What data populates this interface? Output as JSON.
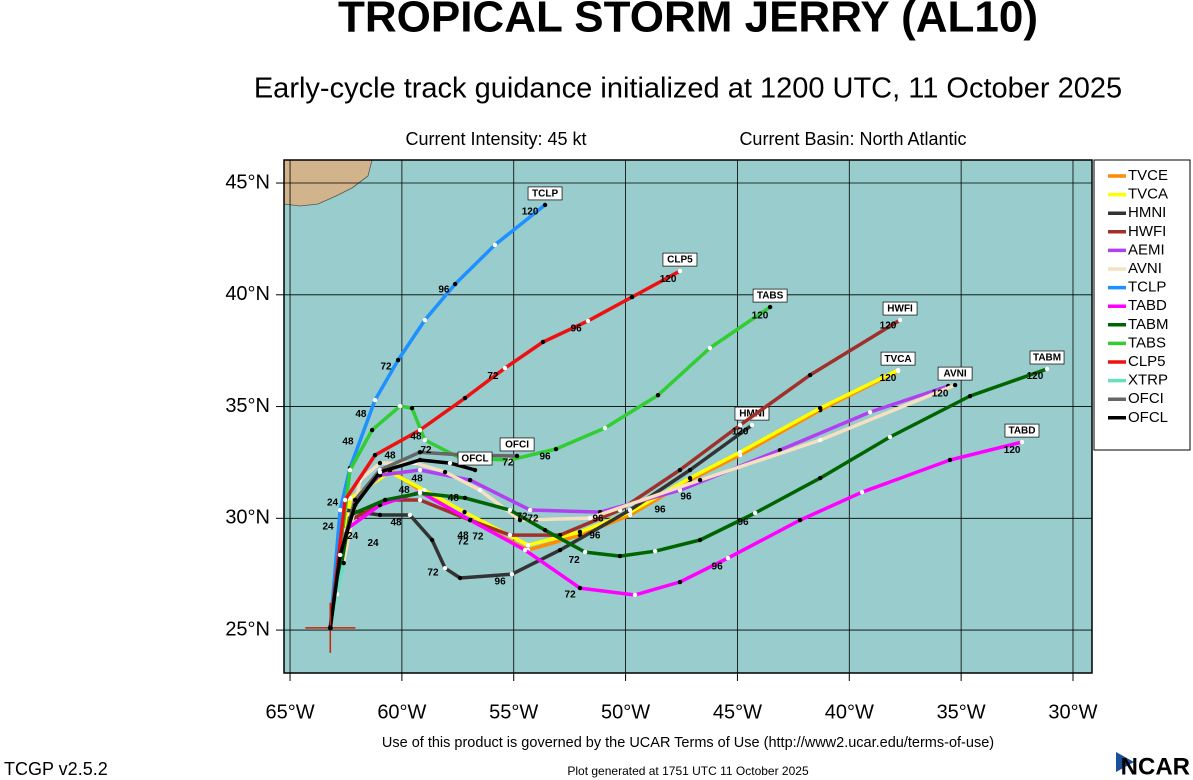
{
  "chart_data": {
    "type": "track",
    "title": "TROPICAL STORM JERRY (AL10)",
    "subtitle": "Early-cycle track guidance initialized at 1200 UTC, 11 October 2025",
    "intensity": "Current Intensity: 45 kt",
    "basin": "Current Basin: North Atlantic",
    "footer": "Use of this product is governed by the UCAR Terms of Use (http://www2.ucar.edu/terms-of-use)",
    "version": "TCGP v2.5.2",
    "generated": "Plot generated at 1751 UTC   11 October 2025",
    "logo": "NCAR",
    "xlim": [
      -65.27,
      -29.15
    ],
    "ylim": [
      23.08,
      46.03
    ],
    "xticks": [
      {
        "value": -65,
        "label": "65°W"
      },
      {
        "value": -60,
        "label": "60°W"
      },
      {
        "value": -55,
        "label": "55°W"
      },
      {
        "value": -50,
        "label": "50°W"
      },
      {
        "value": -45,
        "label": "45°W"
      },
      {
        "value": -40,
        "label": "40°W"
      },
      {
        "value": -35,
        "label": "35°W"
      },
      {
        "value": -30,
        "label": "30°W"
      }
    ],
    "yticks": [
      {
        "value": 25,
        "label": "25°N"
      },
      {
        "value": 30,
        "label": "30°N"
      },
      {
        "value": 35,
        "label": "35°N"
      },
      {
        "value": 40,
        "label": "40°N"
      },
      {
        "value": 45,
        "label": "45°N"
      }
    ],
    "grid": true,
    "legend": "right",
    "current_position": {
      "x": -63.2,
      "y": 25.1
    },
    "series": [
      {
        "name": "TVCE",
        "color": "#ff8c00",
        "labeled": false,
        "x": [
          -63.2,
          -62.32,
          -60.53,
          -59.19,
          -57.4,
          -54.36,
          -52.04,
          -49.8,
          -47.12,
          -44.88,
          -41.3,
          -37.82
        ],
        "y": [
          25.1,
          30.82,
          32.16,
          31.26,
          30.15,
          28.58,
          29.25,
          30.15,
          31.71,
          32.83,
          34.84,
          36.59
        ]
      },
      {
        "name": "TVCA",
        "color": "#ffff00",
        "labeled": true,
        "x": [
          -63.2,
          -62.3,
          -60.53,
          -59.0,
          -57.2,
          -54.36,
          -52.04,
          -49.8,
          -47.12,
          -44.88,
          -41.3,
          -37.82
        ],
        "y": [
          25.1,
          30.9,
          32.07,
          31.26,
          30.28,
          28.8,
          29.39,
          30.28,
          31.8,
          32.96,
          34.93,
          36.63
        ]
      },
      {
        "name": "HMNI",
        "color": "#333333",
        "labeled": true,
        "x": [
          -63.2,
          -62.54,
          -60.98,
          -59.64,
          -58.65,
          -58.07,
          -57.4,
          -55.08,
          -52.93,
          -49.8,
          -47.12,
          -44.35
        ],
        "y": [
          25.1,
          30.37,
          30.15,
          30.15,
          29.03,
          27.77,
          27.33,
          27.5,
          28.58,
          30.37,
          32.16,
          34.17
        ]
      },
      {
        "name": "HWFI",
        "color": "#a0302a",
        "labeled": true,
        "x": [
          -63.2,
          -62.32,
          -60.53,
          -59.19,
          -56.95,
          -55.17,
          -52.93,
          -50.25,
          -47.57,
          -44.88,
          -41.75,
          -37.73
        ],
        "y": [
          25.1,
          29.92,
          30.82,
          30.82,
          29.92,
          29.25,
          29.25,
          30.37,
          32.16,
          34.17,
          36.41,
          38.87
        ]
      },
      {
        "name": "AEMI",
        "color": "#b040f0",
        "labeled": false,
        "x": [
          -63.2,
          -62.09,
          -60.98,
          -59.19,
          -56.95,
          -54.27,
          -51.14,
          -47.57,
          -43.1,
          -39.07,
          -35.58
        ],
        "y": [
          25.1,
          30.82,
          31.93,
          32.16,
          31.71,
          30.37,
          30.28,
          31.26,
          33.05,
          34.75,
          35.92
        ]
      },
      {
        "name": "AVNI",
        "color": "#f5e0c0",
        "labeled": true,
        "x": [
          -63.2,
          -61.87,
          -60.98,
          -59.41,
          -58.07,
          -56.51,
          -54.72,
          -51.59,
          -46.67,
          -41.3,
          -35.27
        ],
        "y": [
          25.1,
          31.71,
          32.47,
          32.47,
          32.07,
          31.26,
          29.92,
          30.01,
          31.71,
          33.5,
          35.96
        ]
      },
      {
        "name": "TCLP",
        "color": "#1e90ff",
        "labeled": true,
        "x": [
          -63.2,
          -62.76,
          -62.32,
          -61.2,
          -60.17,
          -58.97,
          -57.62,
          -55.84,
          -53.6
        ],
        "y": [
          25.1,
          30.37,
          32.25,
          35.29,
          37.08,
          38.87,
          40.48,
          42.23,
          44.02
        ]
      },
      {
        "name": "TABD",
        "color": "#ff00ff",
        "labeled": true,
        "x": [
          -63.2,
          -62.54,
          -60.98,
          -59.19,
          -56.95,
          -54.49,
          -52.04,
          -49.58,
          -47.57,
          -45.42,
          -42.2,
          -39.43,
          -35.5,
          -32.28
        ],
        "y": [
          25.1,
          29.47,
          30.59,
          31.18,
          29.92,
          28.58,
          26.88,
          26.57,
          27.15,
          28.22,
          29.92,
          31.17,
          32.61,
          33.41
        ]
      },
      {
        "name": "TABM",
        "color": "#006400",
        "labeled": true,
        "x": [
          -63.2,
          -62.32,
          -60.75,
          -59.19,
          -57.18,
          -55.17,
          -53.6,
          -51.81,
          -50.25,
          -48.68,
          -46.67,
          -44.21,
          -41.3,
          -38.18,
          -34.6,
          -31.16
        ],
        "y": [
          25.1,
          30.15,
          30.82,
          31.13,
          30.91,
          30.37,
          29.47,
          28.49,
          28.31,
          28.53,
          29.03,
          30.24,
          31.8,
          33.64,
          35.47,
          36.68
        ]
      },
      {
        "name": "TABS",
        "color": "#32cd32",
        "labeled": true,
        "x": [
          -63.2,
          -62.32,
          -61.33,
          -60.08,
          -59.55,
          -58.97,
          -57.4,
          -55.17,
          -53.11,
          -50.92,
          -48.55,
          -46.23,
          -43.54
        ],
        "y": [
          25.1,
          32.16,
          33.95,
          35.02,
          34.93,
          33.5,
          32.7,
          32.61,
          33.1,
          34.04,
          35.51,
          37.62,
          39.45
        ]
      },
      {
        "name": "CLP5",
        "color": "#ee1111",
        "labeled": true,
        "x": [
          -63.2,
          -62.54,
          -61.2,
          -59.19,
          -57.18,
          -55.39,
          -53.69,
          -51.68,
          -49.71,
          -47.57
        ],
        "y": [
          25.1,
          30.82,
          32.83,
          33.95,
          35.38,
          36.72,
          37.89,
          38.83,
          39.9,
          41.06
        ]
      },
      {
        "name": "XTRP",
        "color": "#66e0c0",
        "labeled": false,
        "x": [
          -63.2,
          -62.9,
          -62.6
        ],
        "y": [
          25.1,
          26.6,
          28.0
        ]
      },
      {
        "name": "OFCI",
        "color": "#666666",
        "labeled": true,
        "x": [
          -63.2,
          -62.76,
          -62.09,
          -60.98,
          -59.19,
          -57.18,
          -54.85
        ],
        "y": [
          25.1,
          28.36,
          30.82,
          32.16,
          32.96,
          32.83,
          32.79
        ]
      },
      {
        "name": "OFCL",
        "color": "#000000",
        "labeled": true,
        "x": [
          -63.2,
          -62.76,
          -62.09,
          -60.98,
          -59.19,
          -57.85,
          -56.73
        ],
        "y": [
          25.1,
          28.36,
          30.59,
          32.07,
          32.61,
          32.47,
          32.16
        ]
      }
    ],
    "annotations": [
      {
        "text": "120",
        "x": -54.27,
        "y": 43.7
      },
      {
        "text": "96",
        "x": -58.12,
        "y": 40.21
      },
      {
        "text": "72",
        "x": -60.71,
        "y": 36.77
      },
      {
        "text": "48",
        "x": -62.41,
        "y": 33.41
      },
      {
        "text": "120",
        "x": -48.1,
        "y": 40.7
      },
      {
        "text": "96",
        "x": -52.21,
        "y": 38.47
      },
      {
        "text": "72",
        "x": -55.93,
        "y": 36.36
      },
      {
        "text": "48",
        "x": -60.53,
        "y": 32.79
      },
      {
        "text": "120",
        "x": -43.99,
        "y": 39.05
      },
      {
        "text": "96",
        "x": -53.6,
        "y": 32.74
      },
      {
        "text": "48",
        "x": -61.83,
        "y": 34.66
      },
      {
        "text": "120",
        "x": -38.27,
        "y": 38.6
      },
      {
        "text": "120",
        "x": -44.88,
        "y": 33.86
      },
      {
        "text": "120",
        "x": -38.27,
        "y": 36.27
      },
      {
        "text": "120",
        "x": -35.94,
        "y": 35.56
      },
      {
        "text": "120",
        "x": -31.7,
        "y": 36.36
      },
      {
        "text": "120",
        "x": -32.72,
        "y": 33.05
      },
      {
        "text": "72",
        "x": -55.26,
        "y": 32.47
      },
      {
        "text": "96",
        "x": -45.91,
        "y": 27.82
      },
      {
        "text": "72",
        "x": -52.48,
        "y": 26.57
      },
      {
        "text": "72",
        "x": -58.61,
        "y": 27.55
      },
      {
        "text": "96",
        "x": -55.61,
        "y": 27.15
      },
      {
        "text": "96",
        "x": -44.75,
        "y": 29.83
      },
      {
        "text": "72",
        "x": -52.3,
        "y": 28.13
      },
      {
        "text": "96",
        "x": -51.37,
        "y": 29.21
      },
      {
        "text": "96",
        "x": -48.46,
        "y": 30.37
      },
      {
        "text": "96",
        "x": -47.3,
        "y": 30.95
      },
      {
        "text": "96",
        "x": -51.23,
        "y": 29.97
      },
      {
        "text": "72",
        "x": -57.27,
        "y": 28.94
      },
      {
        "text": "72",
        "x": -56.6,
        "y": 29.16
      },
      {
        "text": "72",
        "x": -54.63,
        "y": 30.06
      },
      {
        "text": "72",
        "x": -54.14,
        "y": 29.97
      },
      {
        "text": "48",
        "x": -57.27,
        "y": 29.21
      },
      {
        "text": "48",
        "x": -57.7,
        "y": 30.9
      },
      {
        "text": "48",
        "x": -59.9,
        "y": 31.26
      },
      {
        "text": "48",
        "x": -60.26,
        "y": 29.79
      },
      {
        "text": "48",
        "x": -59.32,
        "y": 31.76
      },
      {
        "text": "48",
        "x": -59.37,
        "y": 33.64
      },
      {
        "text": "72",
        "x": -58.92,
        "y": 33.05
      },
      {
        "text": "24",
        "x": -61.29,
        "y": 28.89
      },
      {
        "text": "24",
        "x": -63.3,
        "y": 29.61
      },
      {
        "text": "24",
        "x": -63.1,
        "y": 30.7
      },
      {
        "text": "24",
        "x": -62.2,
        "y": 29.2
      }
    ]
  }
}
